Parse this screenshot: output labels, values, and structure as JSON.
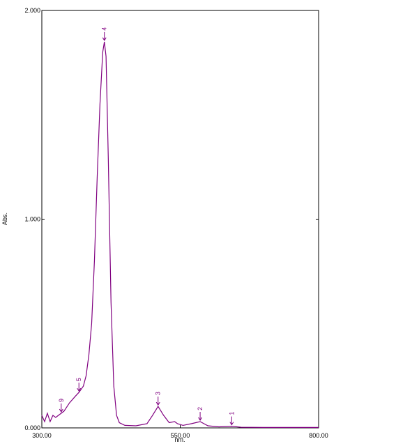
{
  "chart_data": {
    "type": "line",
    "x_label": "nm.",
    "y_label": "Abs.",
    "xlim": [
      300,
      800
    ],
    "ylim": [
      0,
      2
    ],
    "xticks": [
      {
        "value": 300,
        "label": "300.00"
      },
      {
        "value": 550,
        "label": "550.00"
      },
      {
        "value": 800,
        "label": "800.00"
      }
    ],
    "yticks": [
      {
        "value": 0,
        "label": "0.000"
      },
      {
        "value": 1,
        "label": "1.000"
      },
      {
        "value": 2,
        "label": "2.000"
      }
    ],
    "x": [
      300,
      305,
      310,
      315,
      320,
      325,
      330,
      340,
      350,
      360,
      367,
      375,
      380,
      385,
      390,
      395,
      400,
      405,
      410,
      413,
      416,
      420,
      425,
      430,
      435,
      440,
      450,
      470,
      490,
      500,
      510,
      520,
      530,
      540,
      545,
      555,
      570,
      586,
      600,
      620,
      643,
      660,
      700,
      800
    ],
    "series": [
      {
        "name": "Abs.",
        "color": "#800080",
        "values": [
          0.06,
          0.03,
          0.07,
          0.03,
          0.06,
          0.05,
          0.06,
          0.08,
          0.12,
          0.15,
          0.17,
          0.2,
          0.25,
          0.35,
          0.5,
          0.8,
          1.2,
          1.55,
          1.8,
          1.85,
          1.78,
          1.3,
          0.6,
          0.2,
          0.06,
          0.025,
          0.012,
          0.01,
          0.02,
          0.06,
          0.103,
          0.06,
          0.025,
          0.03,
          0.02,
          0.012,
          0.02,
          0.03,
          0.01,
          0.005,
          0.008,
          0.003,
          0.002,
          0.002
        ]
      }
    ],
    "annotations": [
      {
        "label": "1",
        "x": 643,
        "y": 0.008
      },
      {
        "label": "2",
        "x": 586,
        "y": 0.03
      },
      {
        "label": "3",
        "x": 510,
        "y": 0.103
      },
      {
        "label": "4",
        "x": 413,
        "y": 1.85
      },
      {
        "label": "5",
        "x": 367,
        "y": 0.17
      },
      {
        "label": "9",
        "x": 335,
        "y": 0.07
      }
    ]
  }
}
